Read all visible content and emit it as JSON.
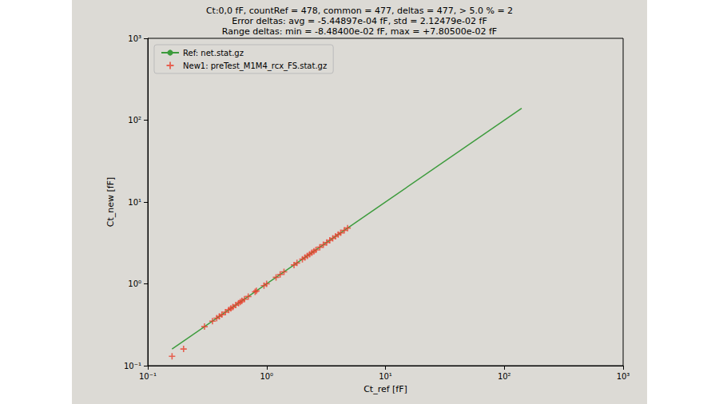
{
  "chart_data": {
    "type": "scatter",
    "title": "Ct:0,0 fF, countRef = 478, common = 477, deltas = 477, > 5.0 % = 2\nError deltas: avg = -5.44897e-04 fF, std = 2.12479e-02 fF\nRange deltas: min = -8.48400e-02 fF, max = +7.80500e-02 fF",
    "x_label": "Ct_ref [fF]",
    "y_label": "Ct_new [fF]",
    "log": true,
    "grid": false,
    "legend": "upper left",
    "xlim": [
      0.1,
      1000
    ],
    "ylim": [
      0.1,
      1000
    ],
    "xticks": [
      {
        "value": 0.1,
        "label": "10⁻¹"
      },
      {
        "value": 1,
        "label": "10⁰"
      },
      {
        "value": 10,
        "label": "10¹"
      },
      {
        "value": 100,
        "label": "10²"
      },
      {
        "value": 1000,
        "label": "10³"
      }
    ],
    "yticks": [
      {
        "value": 0.1,
        "label": "10⁻¹"
      },
      {
        "value": 1,
        "label": "10⁰"
      },
      {
        "value": 10,
        "label": "10¹"
      },
      {
        "value": 100,
        "label": "10²"
      },
      {
        "value": 1000,
        "label": "10³"
      }
    ],
    "series": [
      {
        "name": "Ref: net.stat.gz",
        "type": "line",
        "color": "#3c9b3c",
        "marker": "none",
        "line_style": "solid",
        "x": [
          0.16,
          140
        ],
        "values": [
          0.16,
          140
        ]
      },
      {
        "name": "New1: preTest_M1M4_rcx_FS.stat.gz",
        "type": "scatter",
        "color": "#e8412e",
        "marker": "plus",
        "x": [
          0.16,
          0.2,
          0.3,
          0.35,
          0.38,
          0.4,
          0.42,
          0.45,
          0.48,
          0.5,
          0.52,
          0.55,
          0.58,
          0.6,
          0.62,
          0.65,
          0.7,
          0.8,
          0.82,
          0.95,
          1.0,
          1.2,
          1.3,
          1.4,
          1.7,
          1.8,
          2.0,
          2.1,
          2.2,
          2.3,
          2.4,
          2.5,
          2.6,
          2.8,
          3.0,
          3.2,
          3.4,
          3.6,
          3.8,
          4.0,
          4.2,
          4.5,
          4.8
        ],
        "values": [
          0.13,
          0.16,
          0.3,
          0.35,
          0.38,
          0.4,
          0.42,
          0.45,
          0.48,
          0.5,
          0.52,
          0.55,
          0.58,
          0.6,
          0.62,
          0.65,
          0.7,
          0.8,
          0.82,
          0.95,
          1.0,
          1.2,
          1.3,
          1.4,
          1.7,
          1.8,
          2.0,
          2.1,
          2.2,
          2.3,
          2.4,
          2.5,
          2.6,
          2.8,
          3.0,
          3.2,
          3.4,
          3.6,
          3.8,
          4.0,
          4.2,
          4.5,
          4.8
        ]
      }
    ]
  }
}
